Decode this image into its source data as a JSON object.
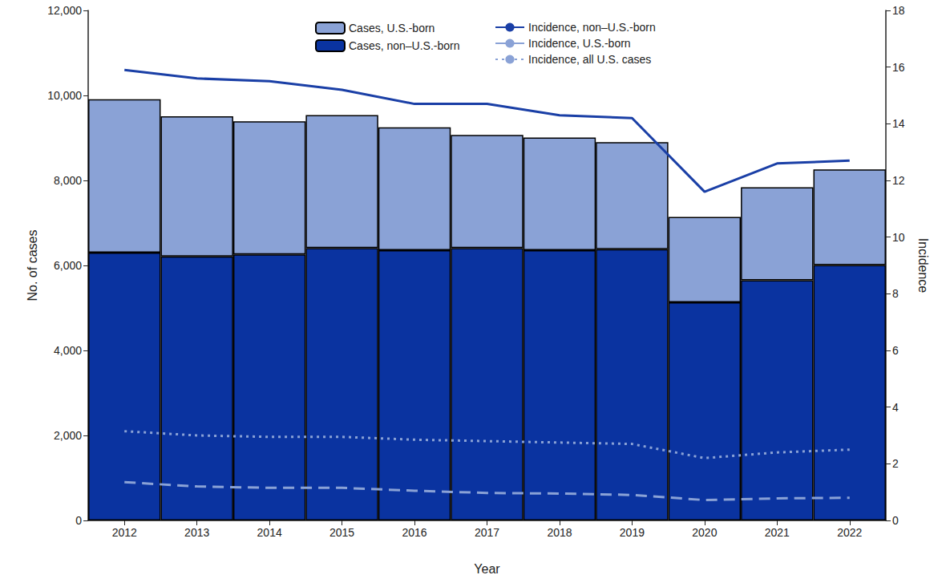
{
  "chart_data": {
    "type": "bar",
    "stacked": true,
    "grid": false,
    "legend": "top",
    "x_label": "Year",
    "y_label": "No. of cases",
    "y2_label": "Incidence",
    "categories": [
      "2012",
      "2013",
      "2014",
      "2015",
      "2016",
      "2017",
      "2018",
      "2019",
      "2020",
      "2021",
      "2022"
    ],
    "ylim": [
      0,
      12000
    ],
    "yticks": [
      0,
      {
        "value": 2000,
        "label": "2,000"
      },
      {
        "value": 4000,
        "label": "4,000"
      },
      {
        "value": 6000,
        "label": "6,000"
      },
      {
        "value": 8000,
        "label": "8,000"
      },
      {
        "value": 10000,
        "label": "10,000"
      },
      {
        "value": 12000,
        "label": "12,000"
      }
    ],
    "y2lim": [
      0,
      18
    ],
    "y2ticks": [
      0,
      2,
      4,
      6,
      8,
      10,
      12,
      14,
      16,
      18
    ],
    "series": [
      {
        "name": "Cases, non–U.S.-born",
        "type": "bar",
        "color": "#0a33a0",
        "values": [
          6300,
          6210,
          6260,
          6410,
          6360,
          6410,
          6360,
          6380,
          5130,
          5650,
          6010
        ]
      },
      {
        "name": "Cases, U.S.-born",
        "type": "bar",
        "color": "#8aa2d6",
        "values": [
          3610,
          3300,
          3130,
          3130,
          2890,
          2660,
          2650,
          2520,
          2010,
          2190,
          2250
        ]
      },
      {
        "name": "Incidence, non–U.S.-born",
        "type": "line",
        "axis": "y2",
        "color": "#1a3fa6",
        "line_style": "solid",
        "values": [
          15.9,
          15.6,
          15.5,
          15.2,
          14.7,
          14.7,
          14.3,
          14.2,
          11.6,
          12.6,
          12.7
        ]
      },
      {
        "name": "Incidence, U.S.-born",
        "type": "line",
        "axis": "y2",
        "color": "#8aa2d6",
        "line_style": "dashed",
        "values": [
          1.35,
          1.2,
          1.15,
          1.15,
          1.05,
          0.97,
          0.95,
          0.9,
          0.72,
          0.78,
          0.8
        ]
      },
      {
        "name": "Incidence, all U.S. cases",
        "type": "line",
        "axis": "y2",
        "color": "#8aa2d6",
        "line_style": "dotted",
        "values": [
          3.15,
          3.0,
          2.95,
          2.95,
          2.85,
          2.8,
          2.75,
          2.7,
          2.2,
          2.4,
          2.5
        ]
      }
    ]
  }
}
